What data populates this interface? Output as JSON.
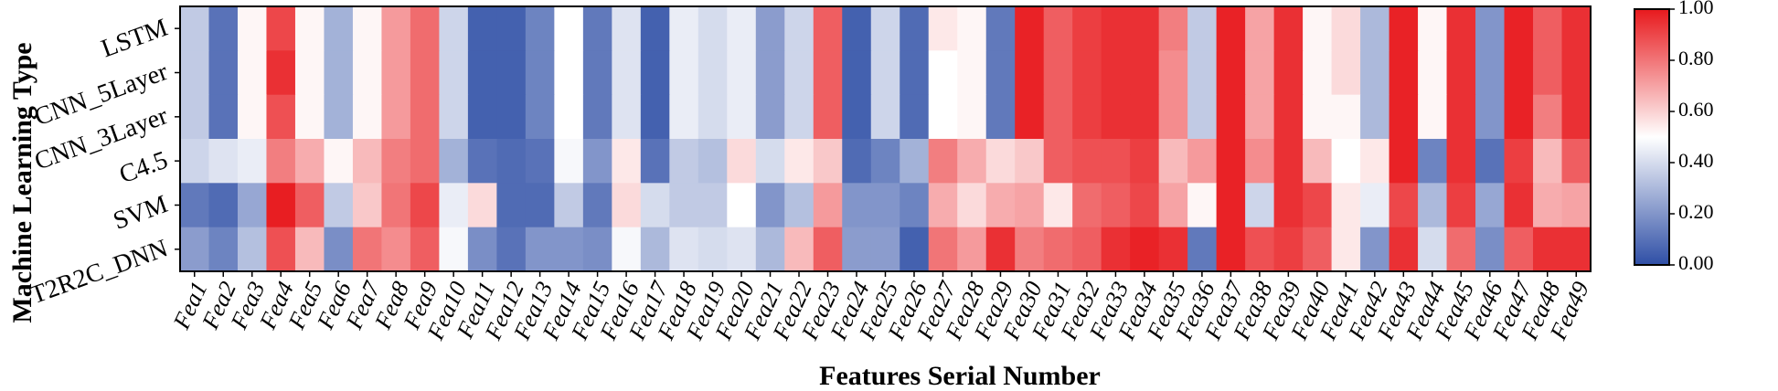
{
  "chart_data": {
    "type": "heatmap",
    "xlabel": "Features Serial Number",
    "ylabel": "Machine Learning Type",
    "rows": [
      "LSTM",
      "CNN_5Layer",
      "CNN_3Layer",
      "C4.5",
      "SVM",
      "T2R2C_DNN"
    ],
    "columns": [
      "Fea1",
      "Fea2",
      "Fea3",
      "Fea4",
      "Fea5",
      "Fea6",
      "Fea7",
      "Fea8",
      "Fea9",
      "Fea10",
      "Fea11",
      "Fea12",
      "Fea13",
      "Fea14",
      "Fea15",
      "Fea16",
      "Fea17",
      "Fea18",
      "Fea19",
      "Fea20",
      "Fea21",
      "Fea22",
      "Fea23",
      "Fea24",
      "Fea25",
      "Fea26",
      "Fea27",
      "Fea28",
      "Fea29",
      "Fea30",
      "Fea31",
      "Fea32",
      "Fea33",
      "Fea34",
      "Fea35",
      "Fea36",
      "Fea37",
      "Fea38",
      "Fea39",
      "Fea40",
      "Fea41",
      "Fea42",
      "Fea43",
      "Fea44",
      "Fea45",
      "Fea46",
      "Fea47",
      "Fea48",
      "Fea49"
    ],
    "values": [
      [
        0.35,
        0.1,
        0.52,
        0.9,
        0.52,
        0.28,
        0.52,
        0.72,
        0.82,
        0.38,
        0.05,
        0.05,
        0.15,
        0.5,
        0.12,
        0.42,
        0.05,
        0.45,
        0.4,
        0.45,
        0.22,
        0.38,
        0.85,
        0.05,
        0.38,
        0.08,
        0.55,
        0.52,
        0.12,
        0.98,
        0.85,
        0.92,
        0.95,
        0.95,
        0.78,
        0.35,
        0.98,
        0.7,
        0.95,
        0.52,
        0.58,
        0.3,
        0.98,
        0.52,
        0.95,
        0.2,
        0.98,
        0.85,
        0.95
      ],
      [
        0.35,
        0.1,
        0.52,
        0.95,
        0.52,
        0.28,
        0.52,
        0.72,
        0.82,
        0.38,
        0.05,
        0.05,
        0.15,
        0.5,
        0.12,
        0.42,
        0.05,
        0.45,
        0.4,
        0.45,
        0.22,
        0.38,
        0.85,
        0.05,
        0.38,
        0.08,
        0.5,
        0.52,
        0.12,
        0.98,
        0.85,
        0.92,
        0.95,
        0.95,
        0.75,
        0.35,
        0.98,
        0.7,
        0.95,
        0.52,
        0.58,
        0.3,
        0.98,
        0.52,
        0.95,
        0.2,
        0.98,
        0.85,
        0.95
      ],
      [
        0.35,
        0.1,
        0.52,
        0.88,
        0.52,
        0.28,
        0.52,
        0.72,
        0.82,
        0.38,
        0.05,
        0.05,
        0.15,
        0.5,
        0.12,
        0.42,
        0.05,
        0.45,
        0.4,
        0.45,
        0.22,
        0.38,
        0.85,
        0.05,
        0.38,
        0.08,
        0.5,
        0.52,
        0.12,
        0.98,
        0.85,
        0.92,
        0.95,
        0.95,
        0.75,
        0.35,
        0.98,
        0.7,
        0.95,
        0.52,
        0.52,
        0.3,
        0.98,
        0.52,
        0.95,
        0.2,
        0.98,
        0.78,
        0.95
      ],
      [
        0.38,
        0.42,
        0.45,
        0.78,
        0.68,
        0.52,
        0.65,
        0.78,
        0.82,
        0.28,
        0.1,
        0.08,
        0.1,
        0.48,
        0.2,
        0.55,
        0.1,
        0.35,
        0.32,
        0.58,
        0.4,
        0.55,
        0.62,
        0.08,
        0.15,
        0.28,
        0.78,
        0.68,
        0.58,
        0.62,
        0.85,
        0.88,
        0.88,
        0.92,
        0.65,
        0.72,
        0.98,
        0.75,
        0.95,
        0.65,
        0.5,
        0.55,
        0.98,
        0.15,
        0.95,
        0.1,
        0.92,
        0.65,
        0.85
      ],
      [
        0.12,
        0.08,
        0.25,
        0.99,
        0.85,
        0.35,
        0.62,
        0.8,
        0.9,
        0.45,
        0.58,
        0.08,
        0.08,
        0.35,
        0.12,
        0.58,
        0.4,
        0.35,
        0.35,
        0.5,
        0.2,
        0.32,
        0.72,
        0.2,
        0.2,
        0.15,
        0.68,
        0.58,
        0.68,
        0.7,
        0.55,
        0.82,
        0.85,
        0.9,
        0.7,
        0.52,
        0.98,
        0.38,
        0.95,
        0.9,
        0.55,
        0.45,
        0.9,
        0.3,
        0.92,
        0.25,
        0.95,
        0.68,
        0.7
      ],
      [
        0.22,
        0.15,
        0.32,
        0.88,
        0.65,
        0.18,
        0.8,
        0.75,
        0.85,
        0.48,
        0.18,
        0.1,
        0.2,
        0.2,
        0.18,
        0.48,
        0.3,
        0.42,
        0.4,
        0.42,
        0.3,
        0.65,
        0.85,
        0.22,
        0.22,
        0.05,
        0.8,
        0.72,
        0.95,
        0.78,
        0.82,
        0.85,
        0.95,
        0.98,
        0.95,
        0.12,
        0.98,
        0.88,
        0.92,
        0.85,
        0.55,
        0.2,
        0.95,
        0.4,
        0.82,
        0.18,
        0.85,
        0.95,
        0.95
      ]
    ],
    "colorbar": {
      "ticks": [
        "0.00",
        "0.20",
        "0.40",
        "0.60",
        "0.80",
        "1.00"
      ],
      "range": [
        0,
        1
      ]
    },
    "colorscale": [
      "#2f4fa6",
      "#ffffff",
      "#e8191d"
    ]
  }
}
